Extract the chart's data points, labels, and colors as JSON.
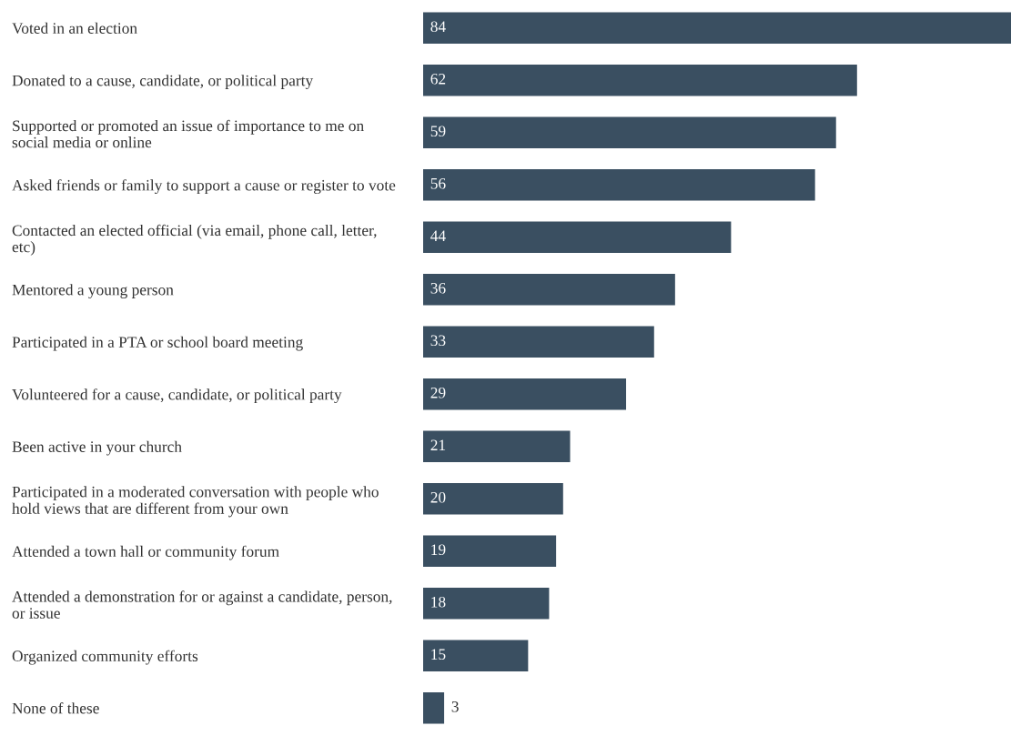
{
  "chart_data": {
    "type": "bar",
    "orientation": "horizontal",
    "data_labels": true,
    "color": "#3a4f61",
    "categories": [
      "Voted in an election",
      "Donated to a cause, candidate, or political party",
      "Supported or promoted an issue of importance to me on social media or online",
      "Asked friends or family to support a cause or register to vote",
      "Contacted an elected official (via email, phone call, letter, etc)",
      "Mentored a young person",
      "Participated in a PTA or school board meeting",
      "Volunteered for a cause, candidate, or political party",
      "Been active in your church",
      "Participated in a moderated conversation with people who hold views that are different from your own",
      "Attended a town hall or community forum",
      "Attended a demonstration for or against a candidate, person, or issue",
      "Organized community efforts",
      "None of these"
    ],
    "values": [
      84,
      62,
      59,
      56,
      44,
      36,
      33,
      29,
      21,
      20,
      19,
      18,
      15,
      3
    ]
  }
}
